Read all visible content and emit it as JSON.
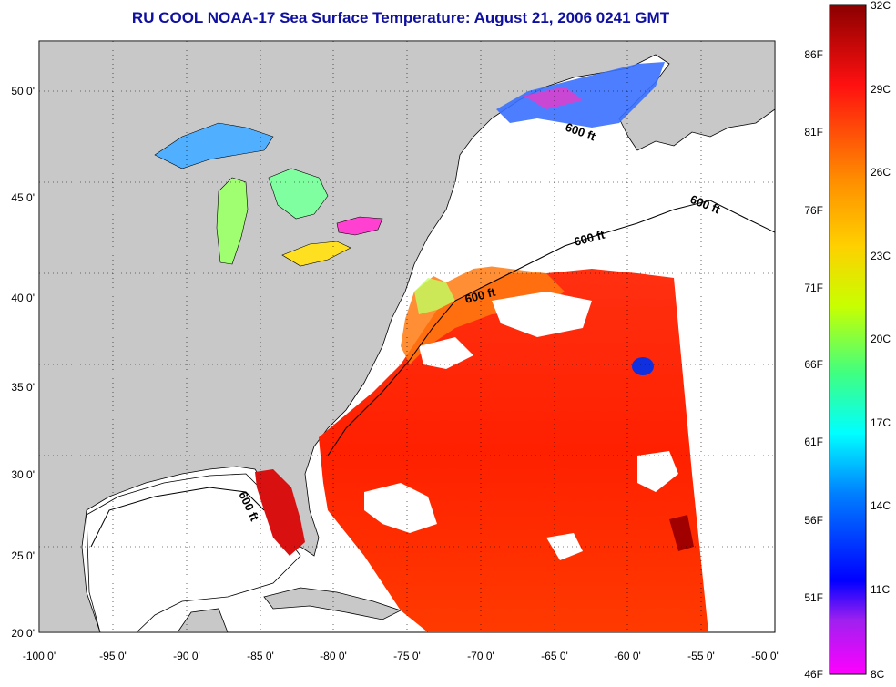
{
  "title": "RU COOL  NOAA-17  Sea Surface Temperature:  August 21, 2006 0241 GMT",
  "map": {
    "lon_range": [
      -100,
      -50
    ],
    "lat_range": [
      20,
      52.5
    ],
    "x_ticks": [
      "-100 0'",
      "-95 0'",
      "-90 0'",
      "-85 0'",
      "-80 0'",
      "-75 0'",
      "-70 0'",
      "-65 0'",
      "-60 0'",
      "-55 0'",
      "-50 0'"
    ],
    "y_ticks": [
      "50 0'",
      "45 0'",
      "40 0'",
      "35 0'",
      "30 0'",
      "25 0'",
      "20 0'"
    ],
    "contour_label": "600 ft",
    "land_color": "#c8c8c8",
    "ocean_empty_color": "#ffffff",
    "grid": "dotted"
  },
  "colorbar": {
    "f_labels": [
      "86F",
      "81F",
      "76F",
      "71F",
      "66F",
      "61F",
      "56F",
      "51F",
      "46F"
    ],
    "c_labels": [
      "32C",
      "29C",
      "26C",
      "23C",
      "20C",
      "17C",
      "14C",
      "11C",
      "8C"
    ],
    "colors_top_to_bottom": [
      "#8b0000",
      "#ff1010",
      "#ff8c00",
      "#ffd000",
      "#c8ff00",
      "#40ff80",
      "#00ffff",
      "#0080ff",
      "#0000ff",
      "#a020f0",
      "#ff00ff"
    ]
  }
}
